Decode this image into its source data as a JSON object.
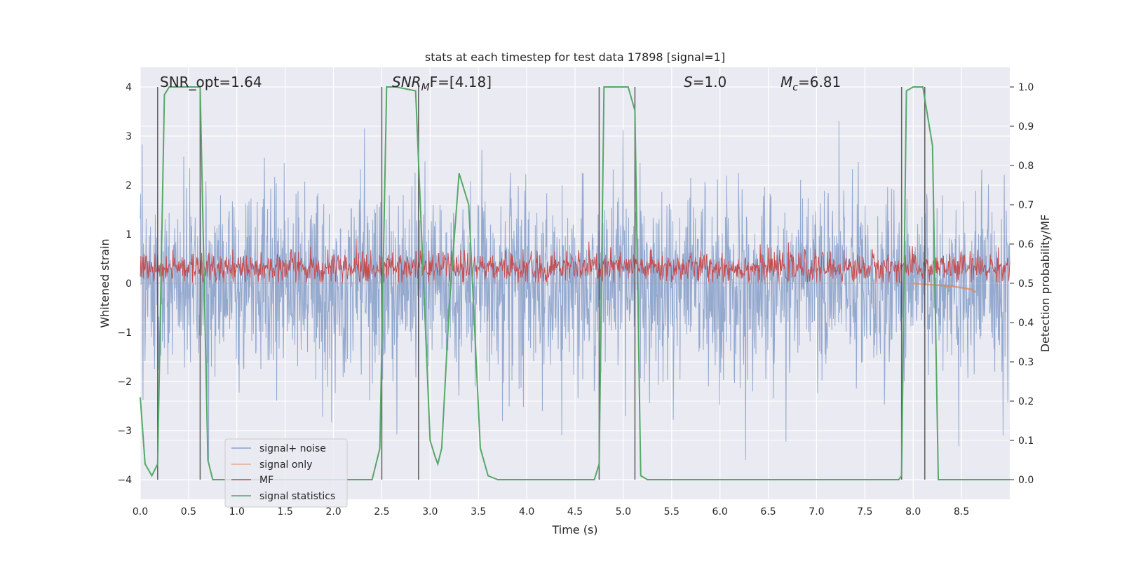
{
  "chart_data": {
    "type": "line",
    "title": "stats at each timestep for test data 17898 [signal=1]",
    "xlabel": "Time (s)",
    "ylabel": "Whitened strain",
    "ylabel_right": "Detection probability/MF",
    "xlim": [
      0.0,
      9.0
    ],
    "ylim": [
      -4.4,
      4.4
    ],
    "ylim_right": [
      -0.05,
      1.05
    ],
    "x_ticks": [
      "0.0",
      "0.5",
      "1.0",
      "1.5",
      "2.0",
      "2.5",
      "3.0",
      "3.5",
      "4.0",
      "4.5",
      "5.0",
      "5.5",
      "6.0",
      "6.5",
      "7.0",
      "7.5",
      "8.0",
      "8.5"
    ],
    "y_ticks": [
      "−4",
      "−3",
      "−2",
      "−1",
      "0",
      "1",
      "2",
      "3",
      "4"
    ],
    "y_ticks_right": [
      "0.0",
      "0.1",
      "0.2",
      "0.3",
      "0.4",
      "0.5",
      "0.6",
      "0.7",
      "0.8",
      "0.9",
      "1.0"
    ],
    "grid": true,
    "legend_position": "bottom-left",
    "annotations": {
      "snr_opt": "SNR_opt=1.64",
      "snr_mf_sym": "SNR",
      "snr_mf_sub": "M",
      "snr_mf_rest": "F=[4.18]",
      "s_sym": "S",
      "s_rest": "=1.0",
      "mc_sym": "M",
      "mc_sub": "c",
      "mc_rest": "=6.81"
    },
    "series": [
      {
        "name": "signal+ noise",
        "color": "#4c72b0",
        "axis": "left",
        "description": "noise band",
        "approx_range": [
          -3.6,
          3.6
        ]
      },
      {
        "name": "signal only",
        "color": "#dd8452",
        "axis": "left",
        "x": [
          8.0,
          8.2,
          8.4,
          8.6,
          8.65
        ],
        "y": [
          0.0,
          -0.03,
          -0.06,
          -0.12,
          -0.18
        ]
      },
      {
        "name": "MF",
        "color": "#c44e52",
        "axis": "left",
        "description": "band around 0.3",
        "approx_range": [
          0.0,
          0.95
        ]
      },
      {
        "name": "signal statistics",
        "color": "#55a868",
        "axis": "right",
        "x": [
          0.0,
          0.05,
          0.12,
          0.18,
          0.25,
          0.3,
          0.45,
          0.62,
          0.7,
          0.75,
          1.0,
          1.5,
          2.0,
          2.4,
          2.48,
          2.55,
          2.65,
          2.85,
          3.0,
          3.05,
          3.08,
          3.12,
          3.2,
          3.3,
          3.4,
          3.52,
          3.6,
          3.7,
          4.0,
          4.5,
          4.7,
          4.75,
          4.8,
          5.05,
          5.12,
          5.18,
          5.25,
          5.5,
          6.0,
          6.5,
          7.0,
          7.5,
          7.85,
          7.88,
          7.93,
          8.0,
          8.1,
          8.2,
          8.26,
          8.35,
          8.6,
          9.0
        ],
        "y": [
          0.21,
          0.04,
          0.01,
          0.04,
          0.98,
          1.0,
          1.0,
          1.0,
          0.05,
          0.0,
          0.0,
          0.0,
          0.0,
          0.0,
          0.08,
          1.0,
          1.0,
          0.99,
          0.1,
          0.06,
          0.04,
          0.08,
          0.45,
          0.78,
          0.7,
          0.08,
          0.01,
          0.0,
          0.0,
          0.0,
          0.0,
          0.04,
          1.0,
          1.0,
          0.94,
          0.01,
          0.0,
          0.0,
          0.0,
          0.0,
          0.0,
          0.0,
          0.0,
          0.01,
          0.99,
          1.0,
          1.0,
          0.85,
          0.0,
          0.0,
          0.0,
          0.0
        ]
      }
    ],
    "vertical_markers_s": [
      0.18,
      0.62,
      2.5,
      2.88,
      4.75,
      5.12,
      7.88,
      8.12
    ],
    "legend": [
      "signal+ noise",
      "signal only",
      "MF",
      "signal statistics"
    ]
  }
}
